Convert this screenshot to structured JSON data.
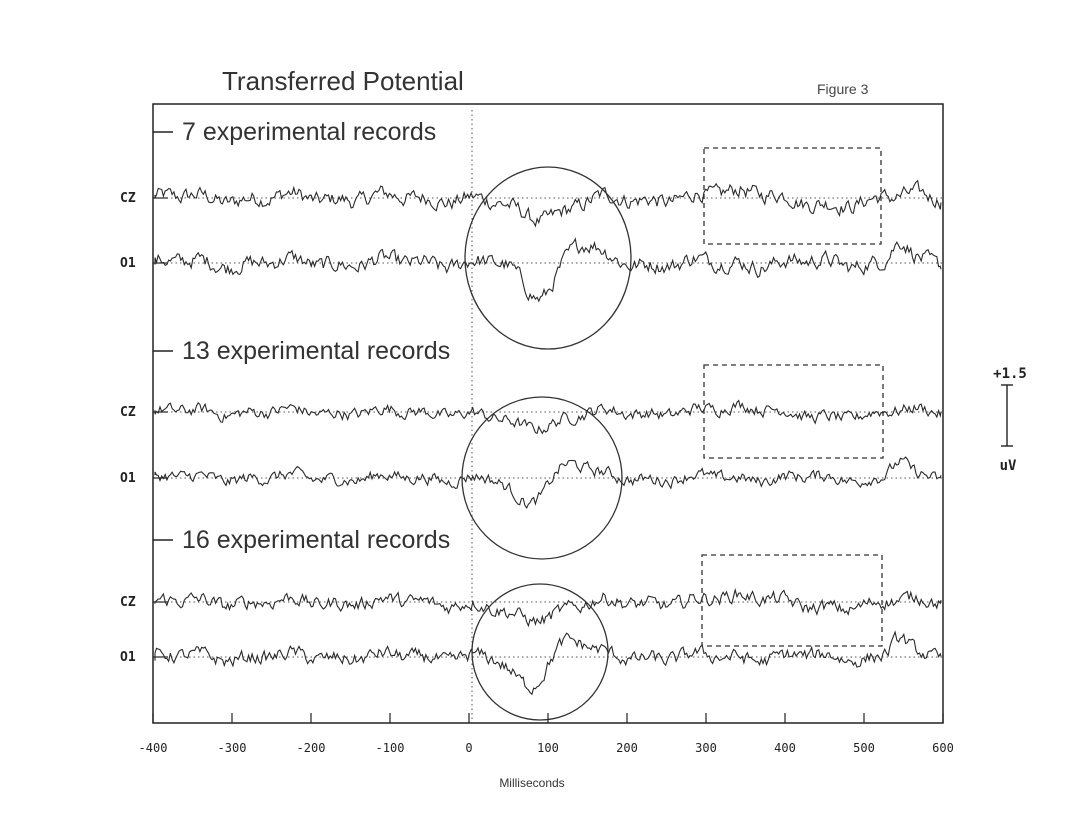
{
  "title": "Transferred Potential",
  "figure_label": "Figure 3",
  "chart_data": {
    "type": "line",
    "title": "Transferred Potential",
    "xlabel": "Milliseconds",
    "xlim": [
      -400,
      600
    ],
    "x_ticks": [
      -400,
      -300,
      -200,
      -100,
      0,
      100,
      200,
      300,
      400,
      500,
      600
    ],
    "channels": [
      "CZ",
      "O1"
    ],
    "scale_bar": {
      "top_label": "+1.5",
      "bottom_label": "uV"
    },
    "stimulus_marker_ms": 0,
    "panels": [
      {
        "label": "7 experimental records",
        "highlight_window_ms": [
          290,
          510
        ],
        "circle_center_ms": 90
      },
      {
        "label": "13 experimental records",
        "highlight_window_ms": [
          290,
          510
        ],
        "circle_center_ms": 75
      },
      {
        "label": "16 experimental records",
        "highlight_window_ms": [
          290,
          510
        ],
        "circle_center_ms": 75
      }
    ]
  }
}
